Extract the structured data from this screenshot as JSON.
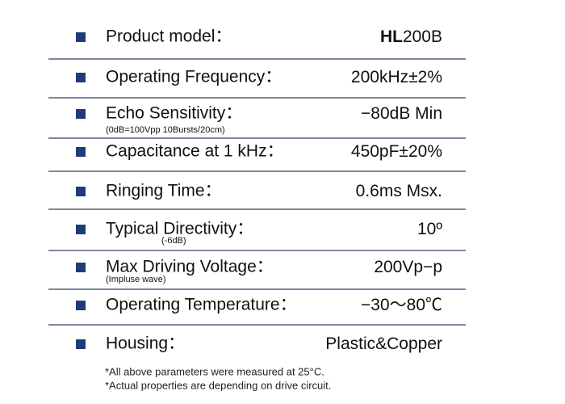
{
  "rows": [
    {
      "label": "Product model：",
      "value_bold": "HL",
      "value": "200B"
    },
    {
      "label": "Operating Frequency：",
      "value": "200kHz±2%"
    },
    {
      "label": "Echo Sensitivity：",
      "sublabel": "(0dB=100Vpp 10Bursts/20cm)",
      "value": "−80dB  Min"
    },
    {
      "label": "Capacitance at 1 kHz：",
      "value": "450pF±20%"
    },
    {
      "label": "Ringing Time：",
      "value": "0.6ms Msx."
    },
    {
      "label": "Typical Directivity：",
      "sublabel": "(-6dB)",
      "value": "10º"
    },
    {
      "label": "Max Driving Voltage：",
      "sublabel": "(Impluse wave)",
      "value": "200Vp−p"
    },
    {
      "label": "Operating Temperature：",
      "value": "−30～80℃"
    },
    {
      "label": "Housing：",
      "value": "Plastic&Copper"
    }
  ],
  "notes": [
    "*All above parameters were measured at 25°C.",
    "*Actual properties are depending on drive circuit."
  ]
}
